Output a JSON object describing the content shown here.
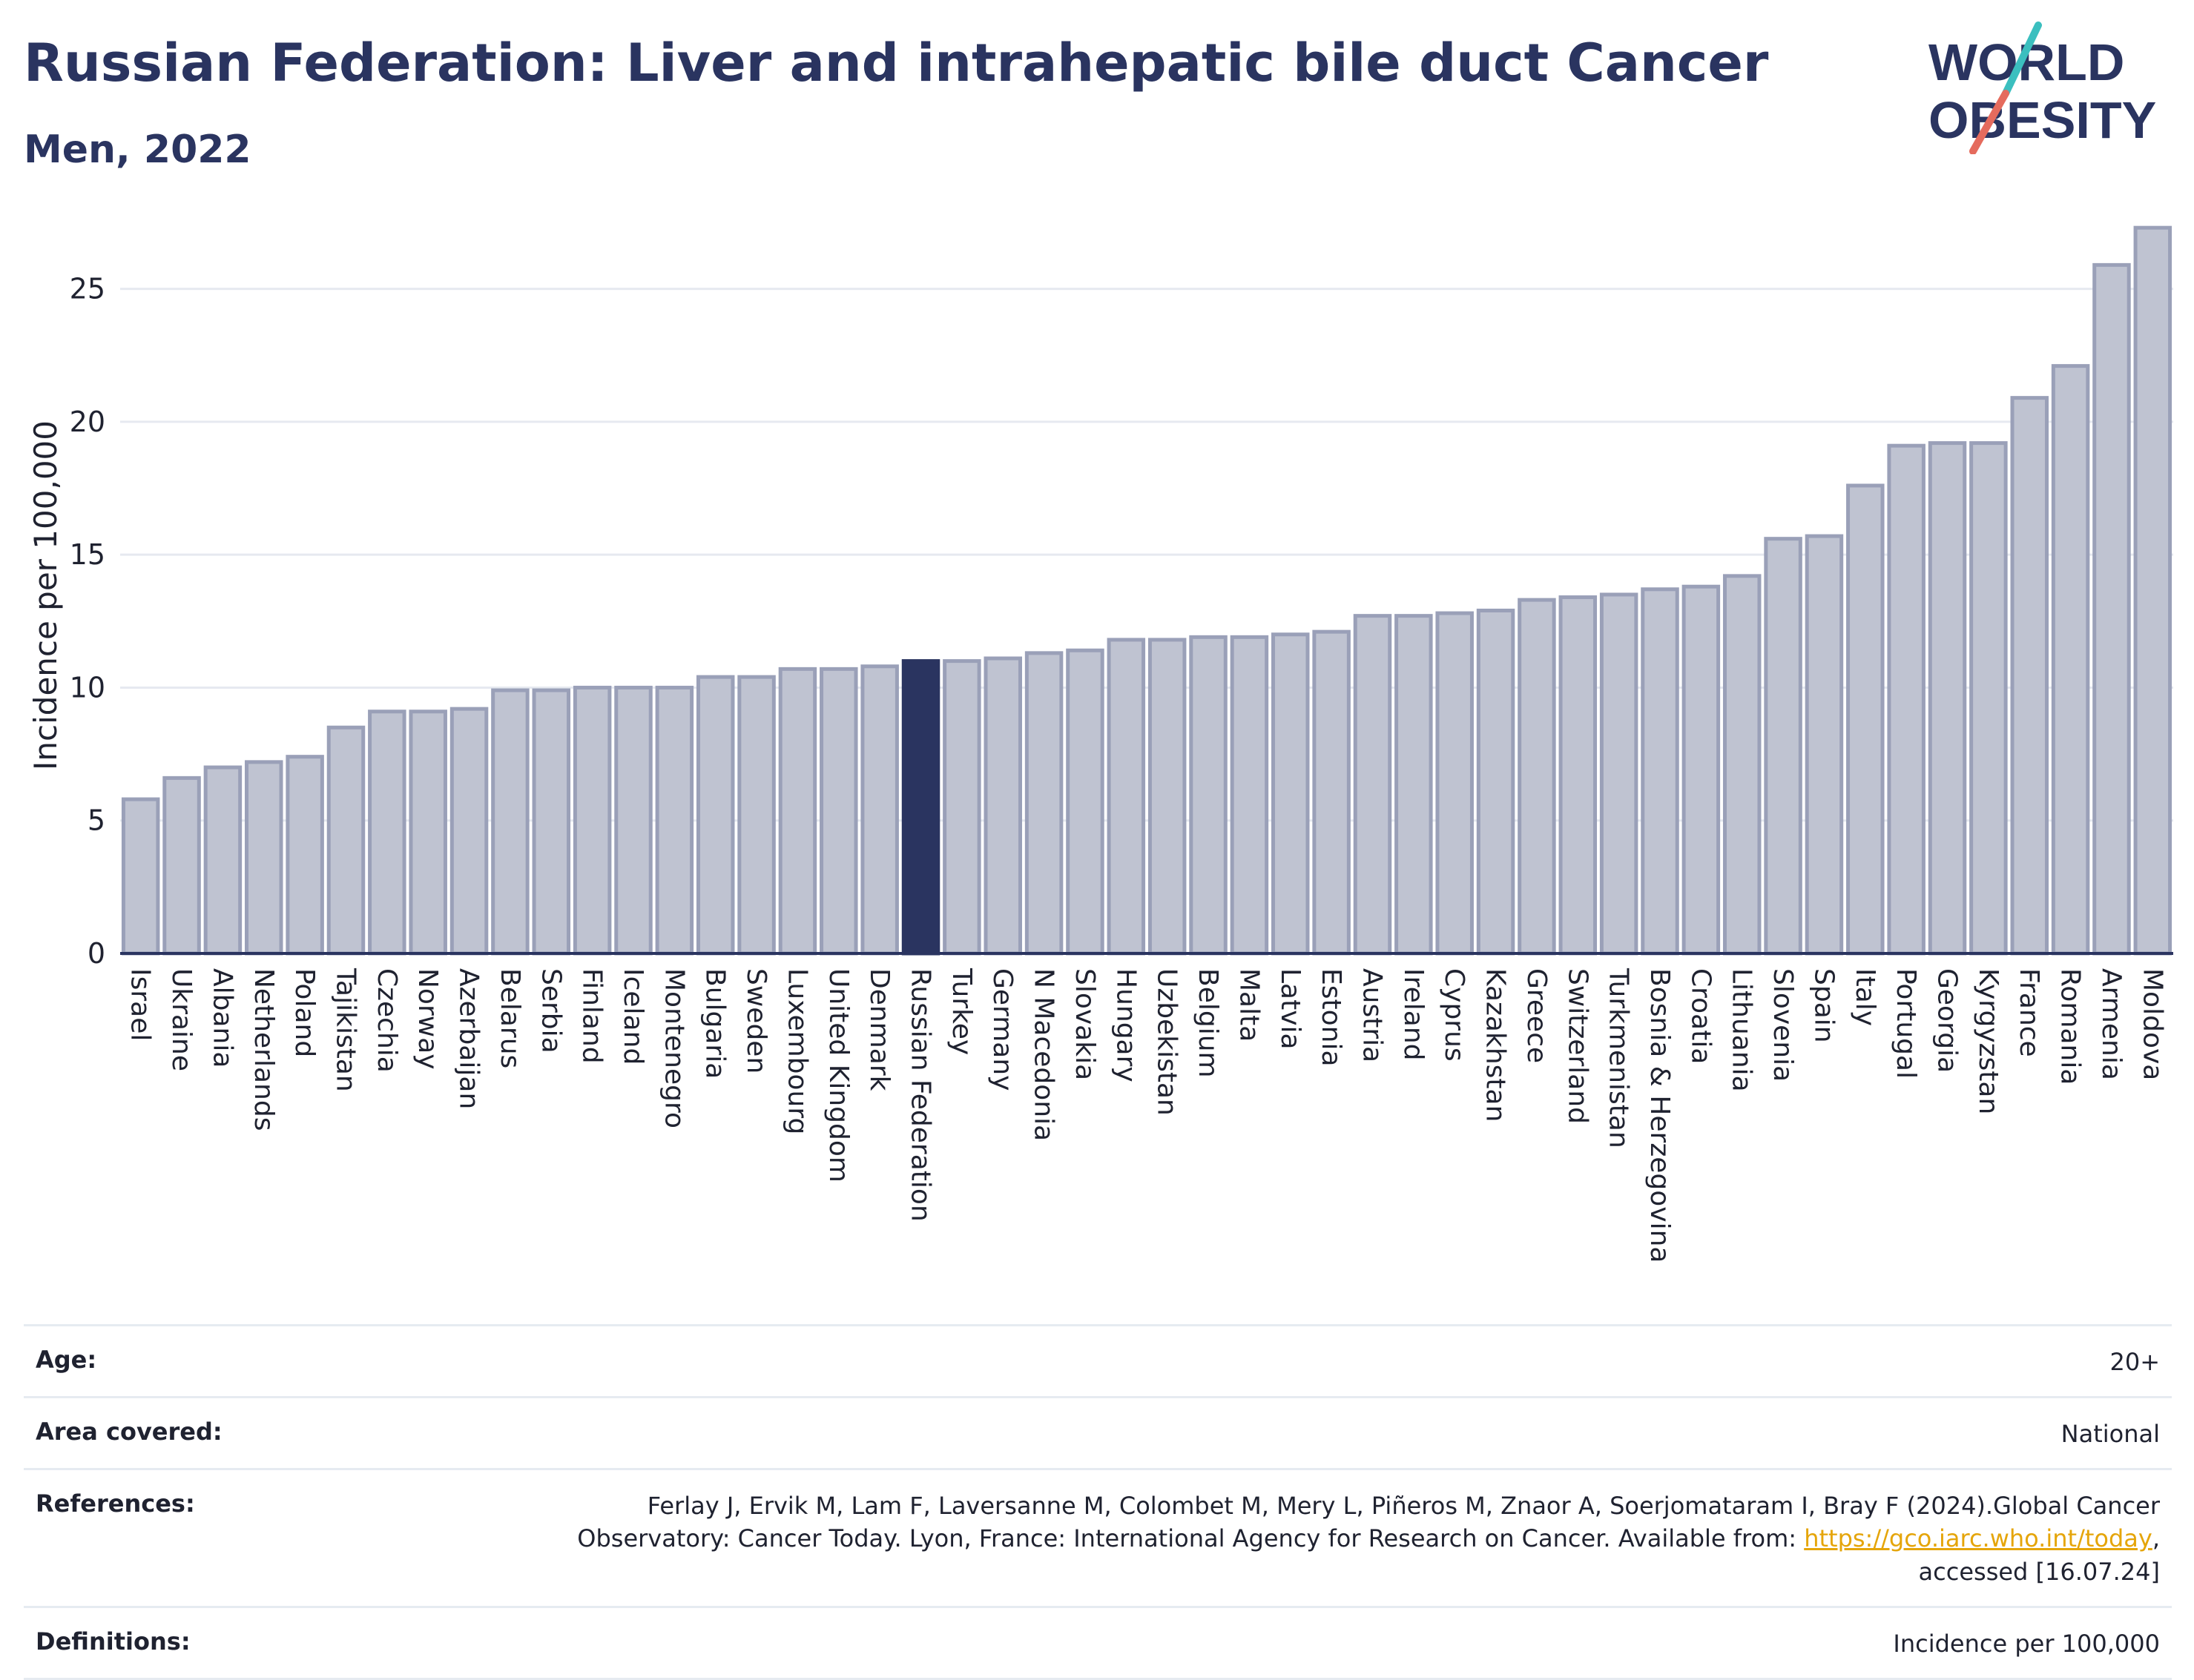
{
  "header": {
    "title": "Russian Federation: Liver and intrahepatic bile duct Cancer",
    "subtitle": "Men, 2022"
  },
  "logo": {
    "line1": "WORLD",
    "line2": "OBESITY",
    "colors": {
      "text": "#2a3460",
      "slash_teal": "#3bbfbf",
      "slash_coral": "#e56b5d"
    }
  },
  "chart_data": {
    "type": "bar",
    "ylabel": "Incidence per 100,000",
    "xlabel": "",
    "ylim": [
      0,
      27.5
    ],
    "yticks": [
      0,
      5,
      10,
      15,
      20,
      25
    ],
    "grid": true,
    "highlight": "Russian Federation",
    "colors": {
      "bar": "#bfc3d1",
      "bar_edge": "#9aa0b8",
      "highlight": "#2a3460",
      "grid": "#e6e9f0",
      "axis": "#2a3460"
    },
    "categories": [
      "Israel",
      "Ukraine",
      "Albania",
      "Netherlands",
      "Poland",
      "Tajikistan",
      "Czechia",
      "Norway",
      "Azerbaijan",
      "Belarus",
      "Serbia",
      "Finland",
      "Iceland",
      "Montenegro",
      "Bulgaria",
      "Sweden",
      "Luxembourg",
      "United Kingdom",
      "Denmark",
      "Russian Federation",
      "Turkey",
      "Germany",
      "N Macedonia",
      "Slovakia",
      "Hungary",
      "Uzbekistan",
      "Belgium",
      "Malta",
      "Latvia",
      "Estonia",
      "Austria",
      "Ireland",
      "Cyprus",
      "Kazakhstan",
      "Greece",
      "Switzerland",
      "Turkmenistan",
      "Bosnia & Herzegovina",
      "Croatia",
      "Lithuania",
      "Slovenia",
      "Spain",
      "Italy",
      "Portugal",
      "Georgia",
      "Kyrgyzstan",
      "France",
      "Romania",
      "Armenia",
      "Moldova"
    ],
    "values": [
      5.8,
      6.6,
      7.0,
      7.2,
      7.4,
      8.5,
      9.1,
      9.1,
      9.2,
      9.9,
      9.9,
      10.0,
      10.0,
      10.0,
      10.4,
      10.4,
      10.7,
      10.7,
      10.8,
      11.0,
      11.0,
      11.1,
      11.3,
      11.4,
      11.8,
      11.8,
      11.9,
      11.9,
      12.0,
      12.1,
      12.7,
      12.7,
      12.8,
      12.9,
      13.3,
      13.4,
      13.5,
      13.7,
      13.8,
      14.2,
      15.6,
      15.7,
      17.6,
      19.1,
      19.2,
      19.2,
      20.9,
      22.1,
      25.9,
      27.3
    ]
  },
  "meta": {
    "age": {
      "label": "Age:",
      "value": "20+"
    },
    "area": {
      "label": "Area covered:",
      "value": "National"
    },
    "references": {
      "label": "References:",
      "line1": "Ferlay J, Ervik M, Lam F, Laversanne M, Colombet M, Mery L, Piñeros M, Znaor A, Soerjomataram I, Bray F (2024).Global Cancer",
      "line2": "Observatory: Cancer Today. Lyon, France: International Agency for Research on Cancer. Available from:",
      "link": "https://gco.iarc.who.int/today",
      "line3": "accessed [16.07.24]"
    },
    "definitions": {
      "label": "Definitions:",
      "value": "Incidence per 100,000"
    }
  }
}
